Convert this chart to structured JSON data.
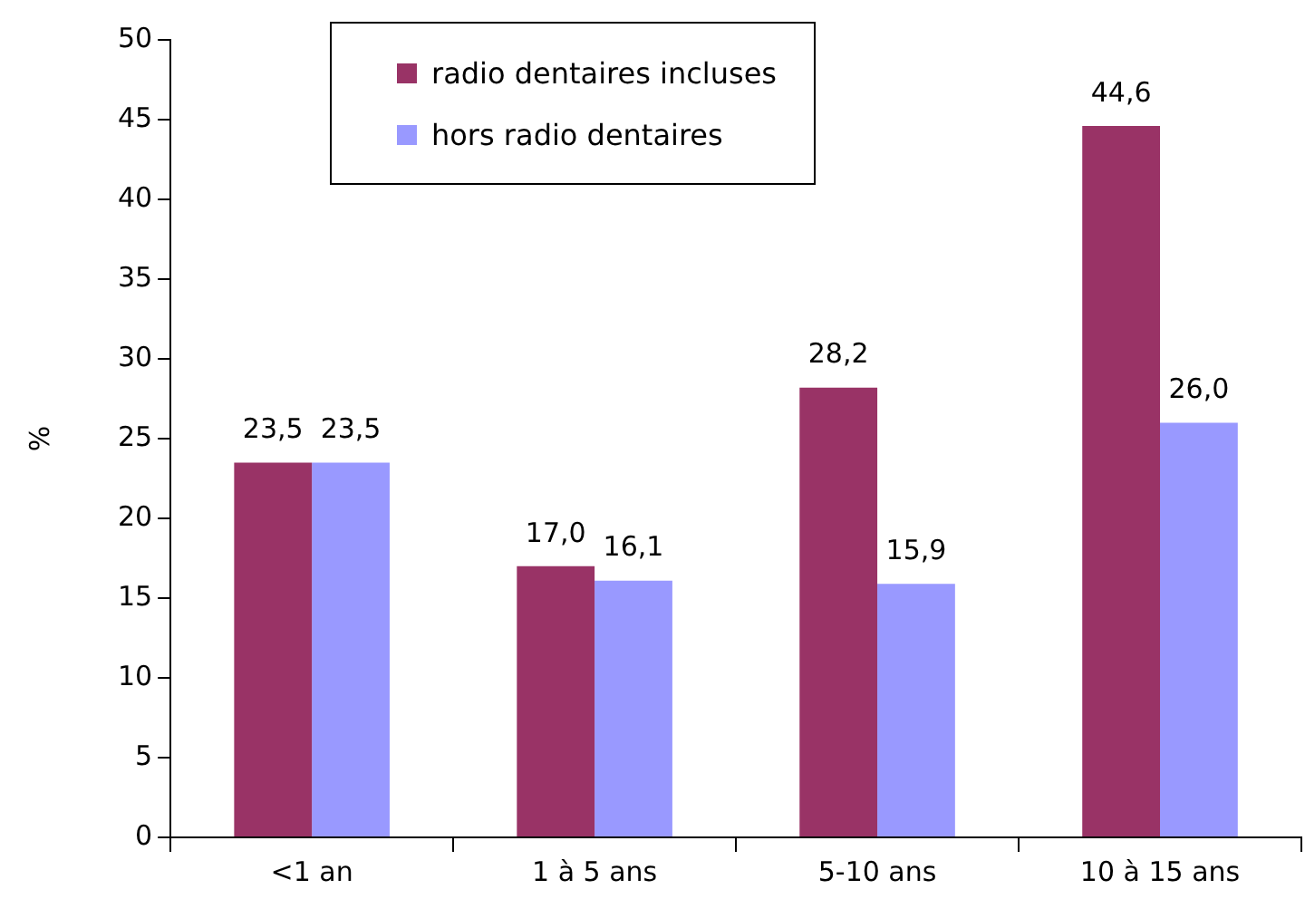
{
  "chart_data": {
    "type": "bar",
    "ylabel": "%",
    "categories": [
      "<1 an",
      "1 à 5 ans",
      "5-10 ans",
      "10 à 15 ans"
    ],
    "series": [
      {
        "name": "radio dentaires incluses",
        "color": "#993366",
        "values": [
          23.5,
          17.0,
          28.2,
          44.6
        ],
        "value_labels": [
          "23,5",
          "17,0",
          "28,2",
          "44,6"
        ]
      },
      {
        "name": "hors radio dentaires",
        "color": "#9999ff",
        "values": [
          23.5,
          16.1,
          15.9,
          26.0
        ],
        "value_labels": [
          "23,5",
          "16,1",
          "15,9",
          "26,0"
        ]
      }
    ],
    "ylim": [
      0,
      50
    ],
    "yticks": [
      0,
      5,
      10,
      15,
      20,
      25,
      30,
      35,
      40,
      45,
      50
    ],
    "legend": "top"
  }
}
